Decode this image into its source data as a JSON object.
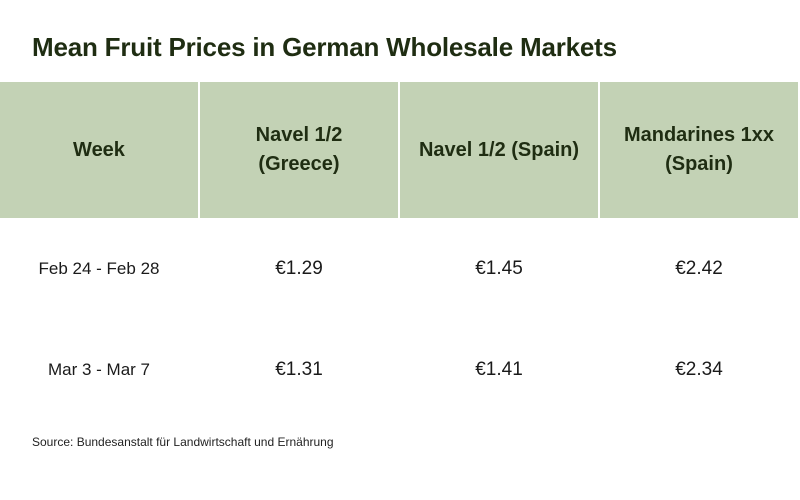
{
  "chart_data": {
    "type": "table",
    "title": "Mean Fruit Prices in German Wholesale Markets",
    "columns": [
      "Week",
      "Navel 1/2 (Greece)",
      "Navel 1/2 (Spain)",
      "Mandarines 1xx (Spain)"
    ],
    "header_lines": [
      [
        "Week"
      ],
      [
        "Navel 1/2",
        "(Greece)"
      ],
      [
        "Navel 1/2 (Spain)"
      ],
      [
        "Mandarines 1xx",
        "(Spain)"
      ]
    ],
    "rows": [
      [
        "Feb 24 - Feb 28",
        "€1.29",
        "€1.45",
        "€2.42"
      ],
      [
        "Mar 3 - Mar 7",
        "€1.31",
        "€1.41",
        "€2.34"
      ]
    ],
    "values": [
      [
        1.29,
        1.45,
        2.42
      ],
      [
        1.31,
        1.41,
        2.34
      ]
    ],
    "source": "Source: Bundesanstalt für Landwirtschaft und Ernährung"
  },
  "colors": {
    "header_background": "#c3d2b5",
    "title_text": "#1f2d12"
  }
}
